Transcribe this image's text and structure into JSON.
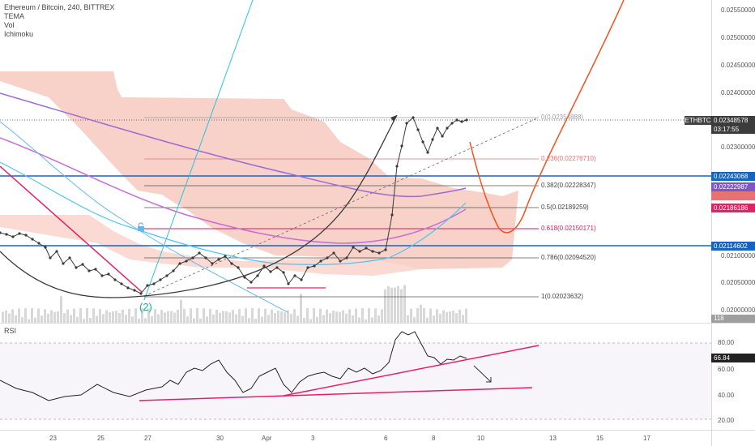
{
  "header": {
    "title": "Ethereum / Bitcoin, 240, BITTREX",
    "indicators": [
      "TEMA",
      "Vol",
      "Ichimoku"
    ]
  },
  "price_axis": {
    "ticks": [
      "0.02550000",
      "0.02500000",
      "0.02450000",
      "0.02400000",
      "0.02300000",
      "0.02100000",
      "0.02050000",
      "0.02000000"
    ],
    "symbol_label": "ETHBTC",
    "current_price": "0.02348578",
    "countdown": "03:17:55",
    "line_blue_1": "0.02243068",
    "line_blue_2": "0.02114602",
    "tema_value": "0.02222987",
    "pink_value": "0.02186186",
    "volume_value": "118"
  },
  "fib_levels": [
    {
      "label": "0(0.02354888)",
      "color": "#9e9e9e"
    },
    {
      "label": "0.236(0.02276710)",
      "color": "#e57373"
    },
    {
      "label": "0.382(0.02228347)",
      "color": "#444444"
    },
    {
      "label": "0.5(0.02189259)",
      "color": "#444444"
    },
    {
      "label": "0.618(0.02150171)",
      "color": "#d81b60"
    },
    {
      "label": "0.786(0.02094520)",
      "color": "#444444"
    },
    {
      "label": "1(0.02023632)",
      "color": "#444444"
    }
  ],
  "annotations": {
    "wave_label": "(2)"
  },
  "rsi": {
    "label": "RSI",
    "value": "66.84",
    "ticks": [
      "80.00",
      "60.00",
      "40.00",
      "20.00"
    ]
  },
  "date_axis": {
    "ticks": [
      "23",
      "25",
      "27",
      "30",
      "Apr",
      "3",
      "6",
      "8",
      "10",
      "13",
      "15",
      "17"
    ]
  },
  "colors": {
    "cloud": "#f4b7a9",
    "blue_line": "#1565c0",
    "price_line": "#3a3a3a",
    "rsi_trend": "#e91e63"
  }
}
